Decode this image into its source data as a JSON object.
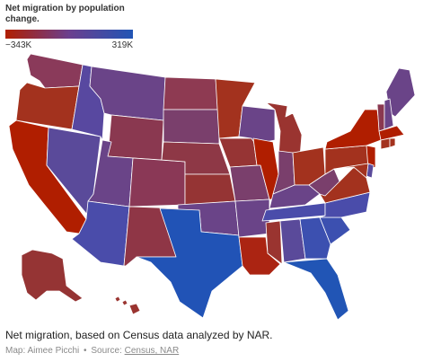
{
  "legend": {
    "title": "Net migration by population change.",
    "min_label": "−343K",
    "max_label": "319K",
    "min_value": -343000,
    "max_value": 319000,
    "min_color": "#b01e00",
    "mid_color": "#6b3f8e",
    "max_color": "#2155b5"
  },
  "map": {
    "outline_color": "#ffffff",
    "states": [
      {
        "id": "WA",
        "color": "#8a3a5a"
      },
      {
        "id": "OR",
        "color": "#a3321e"
      },
      {
        "id": "CA",
        "color": "#b01e00"
      },
      {
        "id": "NV",
        "color": "#5a4a9a"
      },
      {
        "id": "ID",
        "color": "#5848a0"
      },
      {
        "id": "MT",
        "color": "#6a4488"
      },
      {
        "id": "WY",
        "color": "#8a3850"
      },
      {
        "id": "UT",
        "color": "#6a4488"
      },
      {
        "id": "AZ",
        "color": "#4a4caa"
      },
      {
        "id": "CO",
        "color": "#8a3856"
      },
      {
        "id": "NM",
        "color": "#8f3646"
      },
      {
        "id": "ND",
        "color": "#8e3a52"
      },
      {
        "id": "SD",
        "color": "#7a3f6c"
      },
      {
        "id": "NE",
        "color": "#8e3846"
      },
      {
        "id": "KS",
        "color": "#953434"
      },
      {
        "id": "OK",
        "color": "#6a4488"
      },
      {
        "id": "TX",
        "color": "#2153b6"
      },
      {
        "id": "MN",
        "color": "#a3321e"
      },
      {
        "id": "IA",
        "color": "#963434"
      },
      {
        "id": "MO",
        "color": "#7a3f6c"
      },
      {
        "id": "AR",
        "color": "#6a4488"
      },
      {
        "id": "LA",
        "color": "#ab2412"
      },
      {
        "id": "WI",
        "color": "#6a4488"
      },
      {
        "id": "IL",
        "color": "#b01e00"
      },
      {
        "id": "MI",
        "color": "#9a3430"
      },
      {
        "id": "IN",
        "color": "#7a3f6c"
      },
      {
        "id": "OH",
        "color": "#a3321e"
      },
      {
        "id": "KY",
        "color": "#6a4488"
      },
      {
        "id": "TN",
        "color": "#4a4caa"
      },
      {
        "id": "MS",
        "color": "#9a3430"
      },
      {
        "id": "AL",
        "color": "#5a4a9a"
      },
      {
        "id": "GA",
        "color": "#3c50b0"
      },
      {
        "id": "FL",
        "color": "#2155b5"
      },
      {
        "id": "SC",
        "color": "#3c50b0"
      },
      {
        "id": "NC",
        "color": "#4a4caa"
      },
      {
        "id": "VA",
        "color": "#a3321e"
      },
      {
        "id": "WV",
        "color": "#7a3f6c"
      },
      {
        "id": "PA",
        "color": "#a3321e"
      },
      {
        "id": "NY",
        "color": "#b01e00"
      },
      {
        "id": "ME",
        "color": "#6a4488"
      },
      {
        "id": "NH",
        "color": "#6a4488"
      },
      {
        "id": "VT",
        "color": "#8a3850"
      },
      {
        "id": "MA",
        "color": "#b01e00"
      },
      {
        "id": "CT",
        "color": "#a3321e"
      },
      {
        "id": "RI",
        "color": "#a3321e"
      },
      {
        "id": "NJ",
        "color": "#b01e00"
      },
      {
        "id": "DE",
        "color": "#5a4a9a"
      },
      {
        "id": "MD",
        "color": "#a3321e"
      },
      {
        "id": "AK",
        "color": "#953434"
      },
      {
        "id": "HI",
        "color": "#9a3430"
      }
    ]
  },
  "caption": "Net migration, based on Census data analyzed by NAR.",
  "credit": {
    "map_by": "Map: Aimee Picchi",
    "separator": "•",
    "source_prefix": "Source:",
    "source_link": "Census, NAR"
  }
}
